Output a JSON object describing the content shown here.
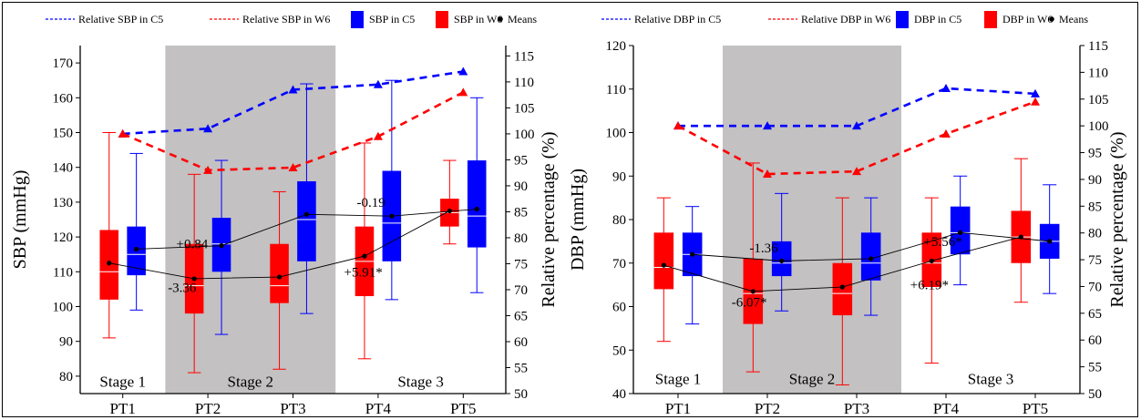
{
  "colors": {
    "c5": "#0000ff",
    "w6": "#ff0000",
    "stage2_shade": "#c3c1c1",
    "mean_line": "#000000"
  },
  "chart_data": [
    {
      "type": "box",
      "categories": [
        "PT1",
        "PT2",
        "PT3",
        "PT4",
        "PT5"
      ],
      "ylabel": "SBP (mmHg)",
      "y2label": "Relative percentage (%)",
      "ylim": [
        75,
        175
      ],
      "y2lim": [
        50,
        117
      ],
      "yticks": [
        80,
        90,
        100,
        110,
        120,
        130,
        140,
        150,
        160,
        170
      ],
      "y2ticks": [
        50,
        55,
        60,
        65,
        70,
        75,
        80,
        85,
        90,
        95,
        100,
        105,
        110,
        115
      ],
      "stages": [
        {
          "label": "Stage 1",
          "from": 0,
          "to": 1,
          "shaded": false
        },
        {
          "label": "Stage 2",
          "from": 1,
          "to": 3,
          "shaded": true
        },
        {
          "label": "Stage 3",
          "from": 3,
          "to": 5,
          "shaded": false
        }
      ],
      "legend": {
        "rel_c5": "Relative  SBP in C5",
        "rel_w6": "Relative  SBP in W6",
        "box_c5": "SBP in C5",
        "box_w6": "SBP in W6",
        "means": "Means"
      },
      "boxes_w6": [
        {
          "min": 91,
          "q1": 102,
          "median": 110,
          "q3": 122,
          "max": 150,
          "mean": 112.5
        },
        {
          "min": 81,
          "q1": 98,
          "median": 106,
          "q3": 118,
          "max": 138,
          "mean": 108
        },
        {
          "min": 82,
          "q1": 101,
          "median": 106,
          "q3": 118,
          "max": 133,
          "mean": 108.5
        },
        {
          "min": 85,
          "q1": 103,
          "median": 113,
          "q3": 123,
          "max": 147,
          "mean": 114.5
        },
        {
          "min": 118,
          "q1": 123,
          "median": 127,
          "q3": 131,
          "max": 142,
          "mean": 127.5
        }
      ],
      "boxes_c5": [
        {
          "min": 99,
          "q1": 109,
          "median": 115,
          "q3": 123,
          "max": 144,
          "mean": 116.5
        },
        {
          "min": 92,
          "q1": 110,
          "median": 118,
          "q3": 125.5,
          "max": 142,
          "mean": 117.5
        },
        {
          "min": 98,
          "q1": 113,
          "median": 125,
          "q3": 136,
          "max": 164,
          "mean": 126.5
        },
        {
          "min": 102,
          "q1": 113,
          "median": 124,
          "q3": 139,
          "max": 165,
          "mean": 126
        },
        {
          "min": 104,
          "q1": 117,
          "median": 126,
          "q3": 142,
          "max": 160,
          "mean": 128
        }
      ],
      "relative_c5": [
        100,
        101,
        108.5,
        109.5,
        112
      ],
      "relative_w6": [
        100,
        93,
        93.5,
        99.5,
        108
      ],
      "annotations": [
        {
          "text": "+0.84",
          "x": 0.63,
          "y": 118
        },
        {
          "text": "-3.36",
          "x": 0.53,
          "y": 105.5
        },
        {
          "text": "-0.19",
          "x": 2.75,
          "y": 130
        },
        {
          "text": "+5.91*",
          "x": 2.6,
          "y": 110
        }
      ],
      "stage_label_y": 78.5
    },
    {
      "type": "box",
      "categories": [
        "PT1",
        "PT2",
        "PT3",
        "PT4",
        "PT5"
      ],
      "ylabel": "DBP (mmHg)",
      "y2label": "Relative percentage (%)",
      "ylim": [
        40,
        120
      ],
      "y2lim": [
        50,
        115
      ],
      "yticks": [
        40,
        50,
        60,
        70,
        80,
        90,
        100,
        110,
        120
      ],
      "y2ticks": [
        50,
        55,
        60,
        65,
        70,
        75,
        80,
        85,
        90,
        95,
        100,
        105,
        110,
        115
      ],
      "stages": [
        {
          "label": "Stage 1",
          "from": 0,
          "to": 1,
          "shaded": false
        },
        {
          "label": "Stage 2",
          "from": 1,
          "to": 3,
          "shaded": true
        },
        {
          "label": "Stage 3",
          "from": 3,
          "to": 5,
          "shaded": false
        }
      ],
      "legend": {
        "rel_c5": "Relative DBP in C5",
        "rel_w6": "Relative DBP in W6",
        "box_c5": "DBP in C5",
        "box_w6": "DBP in W6",
        "means": "Means"
      },
      "boxes_w6": [
        {
          "min": 52,
          "q1": 64,
          "median": 69,
          "q3": 77,
          "max": 85,
          "mean": 69.5
        },
        {
          "min": 45,
          "q1": 56,
          "median": 63,
          "q3": 71,
          "max": 93,
          "mean": 63.5
        },
        {
          "min": 42,
          "q1": 58,
          "median": 63,
          "q3": 70,
          "max": 85,
          "mean": 64.5
        },
        {
          "min": 47,
          "q1": 64.5,
          "median": 70,
          "q3": 77,
          "max": 85,
          "mean": 70.5
        },
        {
          "min": 61,
          "q1": 70,
          "median": 76,
          "q3": 82,
          "max": 94,
          "mean": 76
        }
      ],
      "boxes_c5": [
        {
          "min": 56,
          "q1": 67,
          "median": 72,
          "q3": 77,
          "max": 83,
          "mean": 72
        },
        {
          "min": 59,
          "q1": 67,
          "median": 70,
          "q3": 75,
          "max": 86,
          "mean": 70.5
        },
        {
          "min": 58,
          "q1": 66,
          "median": 70,
          "q3": 77,
          "max": 85,
          "mean": 71
        },
        {
          "min": 65,
          "q1": 72,
          "median": 77,
          "q3": 83,
          "max": 90,
          "mean": 77
        },
        {
          "min": 63,
          "q1": 71,
          "median": 75,
          "q3": 79,
          "max": 88,
          "mean": 75
        }
      ],
      "relative_c5": [
        100,
        100,
        100,
        107,
        106
      ],
      "relative_w6": [
        100,
        91,
        91.5,
        98.5,
        104.5
      ],
      "annotations": [
        {
          "text": "-1.36",
          "x": 0.8,
          "y": 73.5
        },
        {
          "text": "-6.07*",
          "x": 0.6,
          "y": 61
        },
        {
          "text": "+5.56*",
          "x": 2.75,
          "y": 75
        },
        {
          "text": "+6.19*",
          "x": 2.6,
          "y": 65
        }
      ],
      "stage_label_y": 43.5
    }
  ]
}
